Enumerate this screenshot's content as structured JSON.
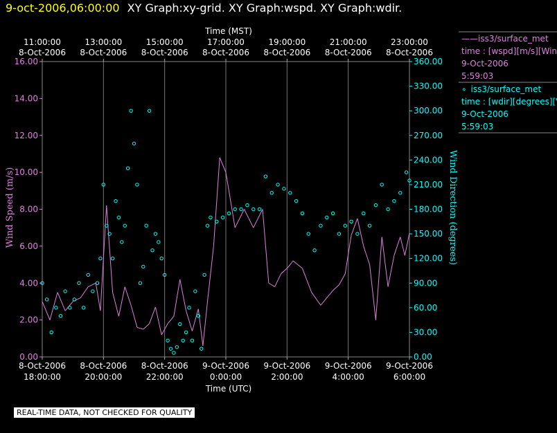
{
  "title": {
    "datetime": "9-oct-2006,06:00:00",
    "graphs": "XY Graph:xy-grid.  XY Graph:wspd.  XY Graph:wdir."
  },
  "notice": "REAL-TIME DATA, NOT CHECKED FOR QUALITY",
  "legend": [
    {
      "marker": "line",
      "symbol": "——",
      "source": "iss3/surface_met",
      "var": "time : [wspd][m/s][Win",
      "date": "9-Oct-2006",
      "time": "5:59:03",
      "color": "#e080e0"
    },
    {
      "marker": "circle",
      "symbol": "∘",
      "source": "iss3/surface_met",
      "var": "time : [wdir][degrees][V",
      "date": "9-Oct-2006",
      "time": "5:59:03",
      "color": "#00ffff"
    }
  ],
  "chart_data": {
    "type": "line",
    "top_axis_title": "Time (MST)",
    "bottom_axis_title": "Time (UTC)",
    "ylabel_left": "Wind Speed (m/s)",
    "ylabel_right": "Wind Direction (degrees)",
    "top_ticks": [
      {
        "t": "11:00:00",
        "d": "8-Oct-2006",
        "h": 0
      },
      {
        "t": "13:00:00",
        "d": "8-Oct-2006",
        "h": 2
      },
      {
        "t": "15:00:00",
        "d": "8-Oct-2006",
        "h": 4
      },
      {
        "t": "17:00:00",
        "d": "8-Oct-2006",
        "h": 6
      },
      {
        "t": "19:00:00",
        "d": "8-Oct-2006",
        "h": 8
      },
      {
        "t": "21:00:00",
        "d": "8-Oct-2006",
        "h": 10
      },
      {
        "t": "23:00:00",
        "d": "8-Oct-2006",
        "h": 12
      }
    ],
    "bottom_ticks": [
      {
        "t": "18:00:00",
        "d": "8-Oct-2006",
        "h": 0
      },
      {
        "t": "20:00:00",
        "d": "8-Oct-2006",
        "h": 2
      },
      {
        "t": "22:00:00",
        "d": "8-Oct-2006",
        "h": 4
      },
      {
        "t": "0:00:00",
        "d": "9-Oct-2006",
        "h": 6
      },
      {
        "t": "2:00:00",
        "d": "9-Oct-2006",
        "h": 8
      },
      {
        "t": "4:00:00",
        "d": "9-Oct-2006",
        "h": 10
      },
      {
        "t": "6:00:00",
        "d": "9-Oct-2006",
        "h": 12
      }
    ],
    "left_ticks": [
      "0.00",
      "2.00",
      "4.00",
      "6.00",
      "8.00",
      "10.00",
      "12.00",
      "14.00",
      "16.00"
    ],
    "right_ticks": [
      "0.00",
      "30.00",
      "60.00",
      "90.00",
      "120.00",
      "150.00",
      "180.00",
      "210.00",
      "240.00",
      "270.00",
      "300.00",
      "330.00",
      "360.00"
    ],
    "x_range_hours": [
      0,
      12
    ],
    "ylim_left": [
      0,
      16
    ],
    "ylim_right": [
      0,
      360
    ],
    "grid": "vertical",
    "series": [
      {
        "axis": "left",
        "color": "#e080e0",
        "style": "line",
        "x": [
          0,
          0.25,
          0.5,
          0.75,
          1,
          1.25,
          1.5,
          1.75,
          1.9,
          2.1,
          2.3,
          2.5,
          2.7,
          2.9,
          3.1,
          3.3,
          3.5,
          3.7,
          3.9,
          4.1,
          4.3,
          4.5,
          4.7,
          4.9,
          5.1,
          5.25,
          5.4,
          5.6,
          5.8,
          6.0,
          6.3,
          6.6,
          6.9,
          7.2,
          7.4,
          7.6,
          7.8,
          8.0,
          8.2,
          8.5,
          8.8,
          9.1,
          9.3,
          9.5,
          9.7,
          9.9,
          10.1,
          10.3,
          10.5,
          10.7,
          10.9,
          11.1,
          11.3,
          11.5,
          11.7,
          11.85,
          12.0
        ],
        "y": [
          3.0,
          2.0,
          3.5,
          2.5,
          3.0,
          3.2,
          3.8,
          4.0,
          2.5,
          8.2,
          3.5,
          2.2,
          3.8,
          2.8,
          1.6,
          1.5,
          1.8,
          2.7,
          1.2,
          1.8,
          2.2,
          4.2,
          2.5,
          1.4,
          2.6,
          0.6,
          3.0,
          6.0,
          10.8,
          10.0,
          7.0,
          8.0,
          7.0,
          8.0,
          4.0,
          3.8,
          4.5,
          4.8,
          5.2,
          4.8,
          3.5,
          2.8,
          3.2,
          3.6,
          3.9,
          4.5,
          6.6,
          7.5,
          6.0,
          5.0,
          2.0,
          6.5,
          3.8,
          5.5,
          6.5,
          5.5,
          6.7
        ]
      },
      {
        "axis": "right",
        "color": "#00ffff",
        "style": "points",
        "x": [
          0,
          0.15,
          0.3,
          0.45,
          0.6,
          0.75,
          0.9,
          1.05,
          1.2,
          1.35,
          1.5,
          1.65,
          1.8,
          1.9,
          2.0,
          2.1,
          2.2,
          2.3,
          2.4,
          2.5,
          2.6,
          2.7,
          2.8,
          2.9,
          3.0,
          3.1,
          3.2,
          3.3,
          3.4,
          3.5,
          3.6,
          3.7,
          3.8,
          3.9,
          4.0,
          4.1,
          4.2,
          4.3,
          4.4,
          4.5,
          4.6,
          4.7,
          4.8,
          4.9,
          5.0,
          5.1,
          5.2,
          5.3,
          5.4,
          5.5,
          5.7,
          5.9,
          6.1,
          6.3,
          6.5,
          6.7,
          6.9,
          7.1,
          7.3,
          7.5,
          7.7,
          7.9,
          8.1,
          8.3,
          8.5,
          8.7,
          8.9,
          9.1,
          9.3,
          9.5,
          9.7,
          9.9,
          10.1,
          10.3,
          10.5,
          10.7,
          10.9,
          11.1,
          11.3,
          11.5,
          11.7,
          11.9,
          12.0
        ],
        "y": [
          90,
          70,
          30,
          60,
          50,
          80,
          60,
          70,
          90,
          60,
          100,
          80,
          90,
          120,
          210,
          160,
          150,
          120,
          190,
          170,
          140,
          160,
          230,
          300,
          260,
          210,
          90,
          110,
          160,
          300,
          130,
          150,
          140,
          120,
          100,
          20,
          10,
          5,
          12,
          40,
          20,
          30,
          60,
          20,
          80,
          50,
          10,
          100,
          160,
          170,
          165,
          170,
          175,
          180,
          180,
          185,
          180,
          180,
          220,
          200,
          210,
          205,
          200,
          190,
          175,
          150,
          130,
          160,
          170,
          175,
          150,
          160,
          165,
          150,
          175,
          160,
          185,
          210,
          180,
          190,
          200,
          225,
          215
        ]
      }
    ]
  }
}
